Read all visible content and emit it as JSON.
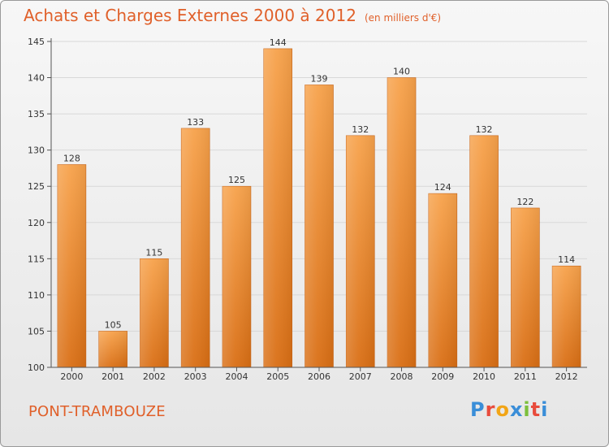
{
  "header": {
    "title": "Achats et Charges Externes 2000 à 2012",
    "unit": "(en milliers d'€)"
  },
  "footer": {
    "commune": "PONT-TRAMBOUZE",
    "logo_letters": [
      "P",
      "r",
      "o",
      "x",
      "i",
      "t",
      "i"
    ],
    "logo_colors": [
      "#3a8ed8",
      "#e84c3d",
      "#f2a516",
      "#3a8ed8",
      "#7cbf3c",
      "#e84c3d",
      "#3a8ed8"
    ]
  },
  "colors": {
    "bar_top": "#f7a24b",
    "bar_bottom": "#d96e14",
    "axis": "#555555",
    "grid": "#d8d8d8",
    "title": "#e0602a"
  },
  "chart_data": {
    "type": "bar",
    "categories": [
      "2000",
      "2001",
      "2002",
      "2003",
      "2004",
      "2005",
      "2006",
      "2007",
      "2008",
      "2009",
      "2010",
      "2011",
      "2012"
    ],
    "values": [
      128,
      105,
      115,
      133,
      125,
      144,
      139,
      132,
      140,
      124,
      132,
      122,
      114
    ],
    "title": "Achats et Charges Externes 2000 à 2012",
    "xlabel": "",
    "ylabel": "",
    "ylim": [
      100,
      145
    ],
    "yticks": [
      100,
      105,
      110,
      115,
      120,
      125,
      130,
      135,
      140,
      145
    ],
    "grid": true
  }
}
